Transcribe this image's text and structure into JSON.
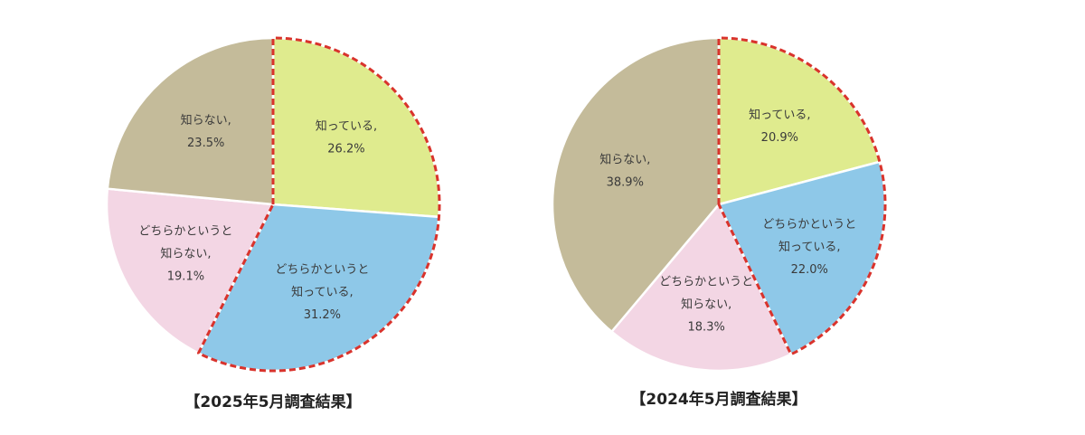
{
  "chart_data": [
    {
      "type": "pie",
      "title": "【2025年5月調査結果】",
      "slices": [
        {
          "label_lines": [
            "知っている,"
          ],
          "value_text": "26.2%",
          "value": 26.2,
          "color": "#dfeb8e",
          "highlight": true
        },
        {
          "label_lines": [
            "どちらかというと",
            "知っている,"
          ],
          "value_text": "31.2%",
          "value": 31.2,
          "color": "#8ec8e8",
          "highlight": true
        },
        {
          "label_lines": [
            "どちらかというと",
            "知らない,"
          ],
          "value_text": "19.1%",
          "value": 19.1,
          "color": "#f3d6e4",
          "highlight": false
        },
        {
          "label_lines": [
            "知らない,"
          ],
          "value_text": "23.5%",
          "value": 23.5,
          "color": "#c4bb9a",
          "highlight": false
        }
      ]
    },
    {
      "type": "pie",
      "title": "【2024年5月調査結果】",
      "slices": [
        {
          "label_lines": [
            "知っている,"
          ],
          "value_text": "20.9%",
          "value": 20.9,
          "color": "#dfeb8e",
          "highlight": true
        },
        {
          "label_lines": [
            "どちらかというと",
            "知っている,"
          ],
          "value_text": "22.0%",
          "value": 22.0,
          "color": "#8ec8e8",
          "highlight": true
        },
        {
          "label_lines": [
            "どちらかというと",
            "知らない,"
          ],
          "value_text": "18.3%",
          "value": 18.3,
          "color": "#f3d6e4",
          "highlight": false
        },
        {
          "label_lines": [
            "知らない,"
          ],
          "value_text": "38.9%",
          "value": 38.9,
          "color": "#c4bb9a",
          "highlight": false
        }
      ]
    }
  ]
}
